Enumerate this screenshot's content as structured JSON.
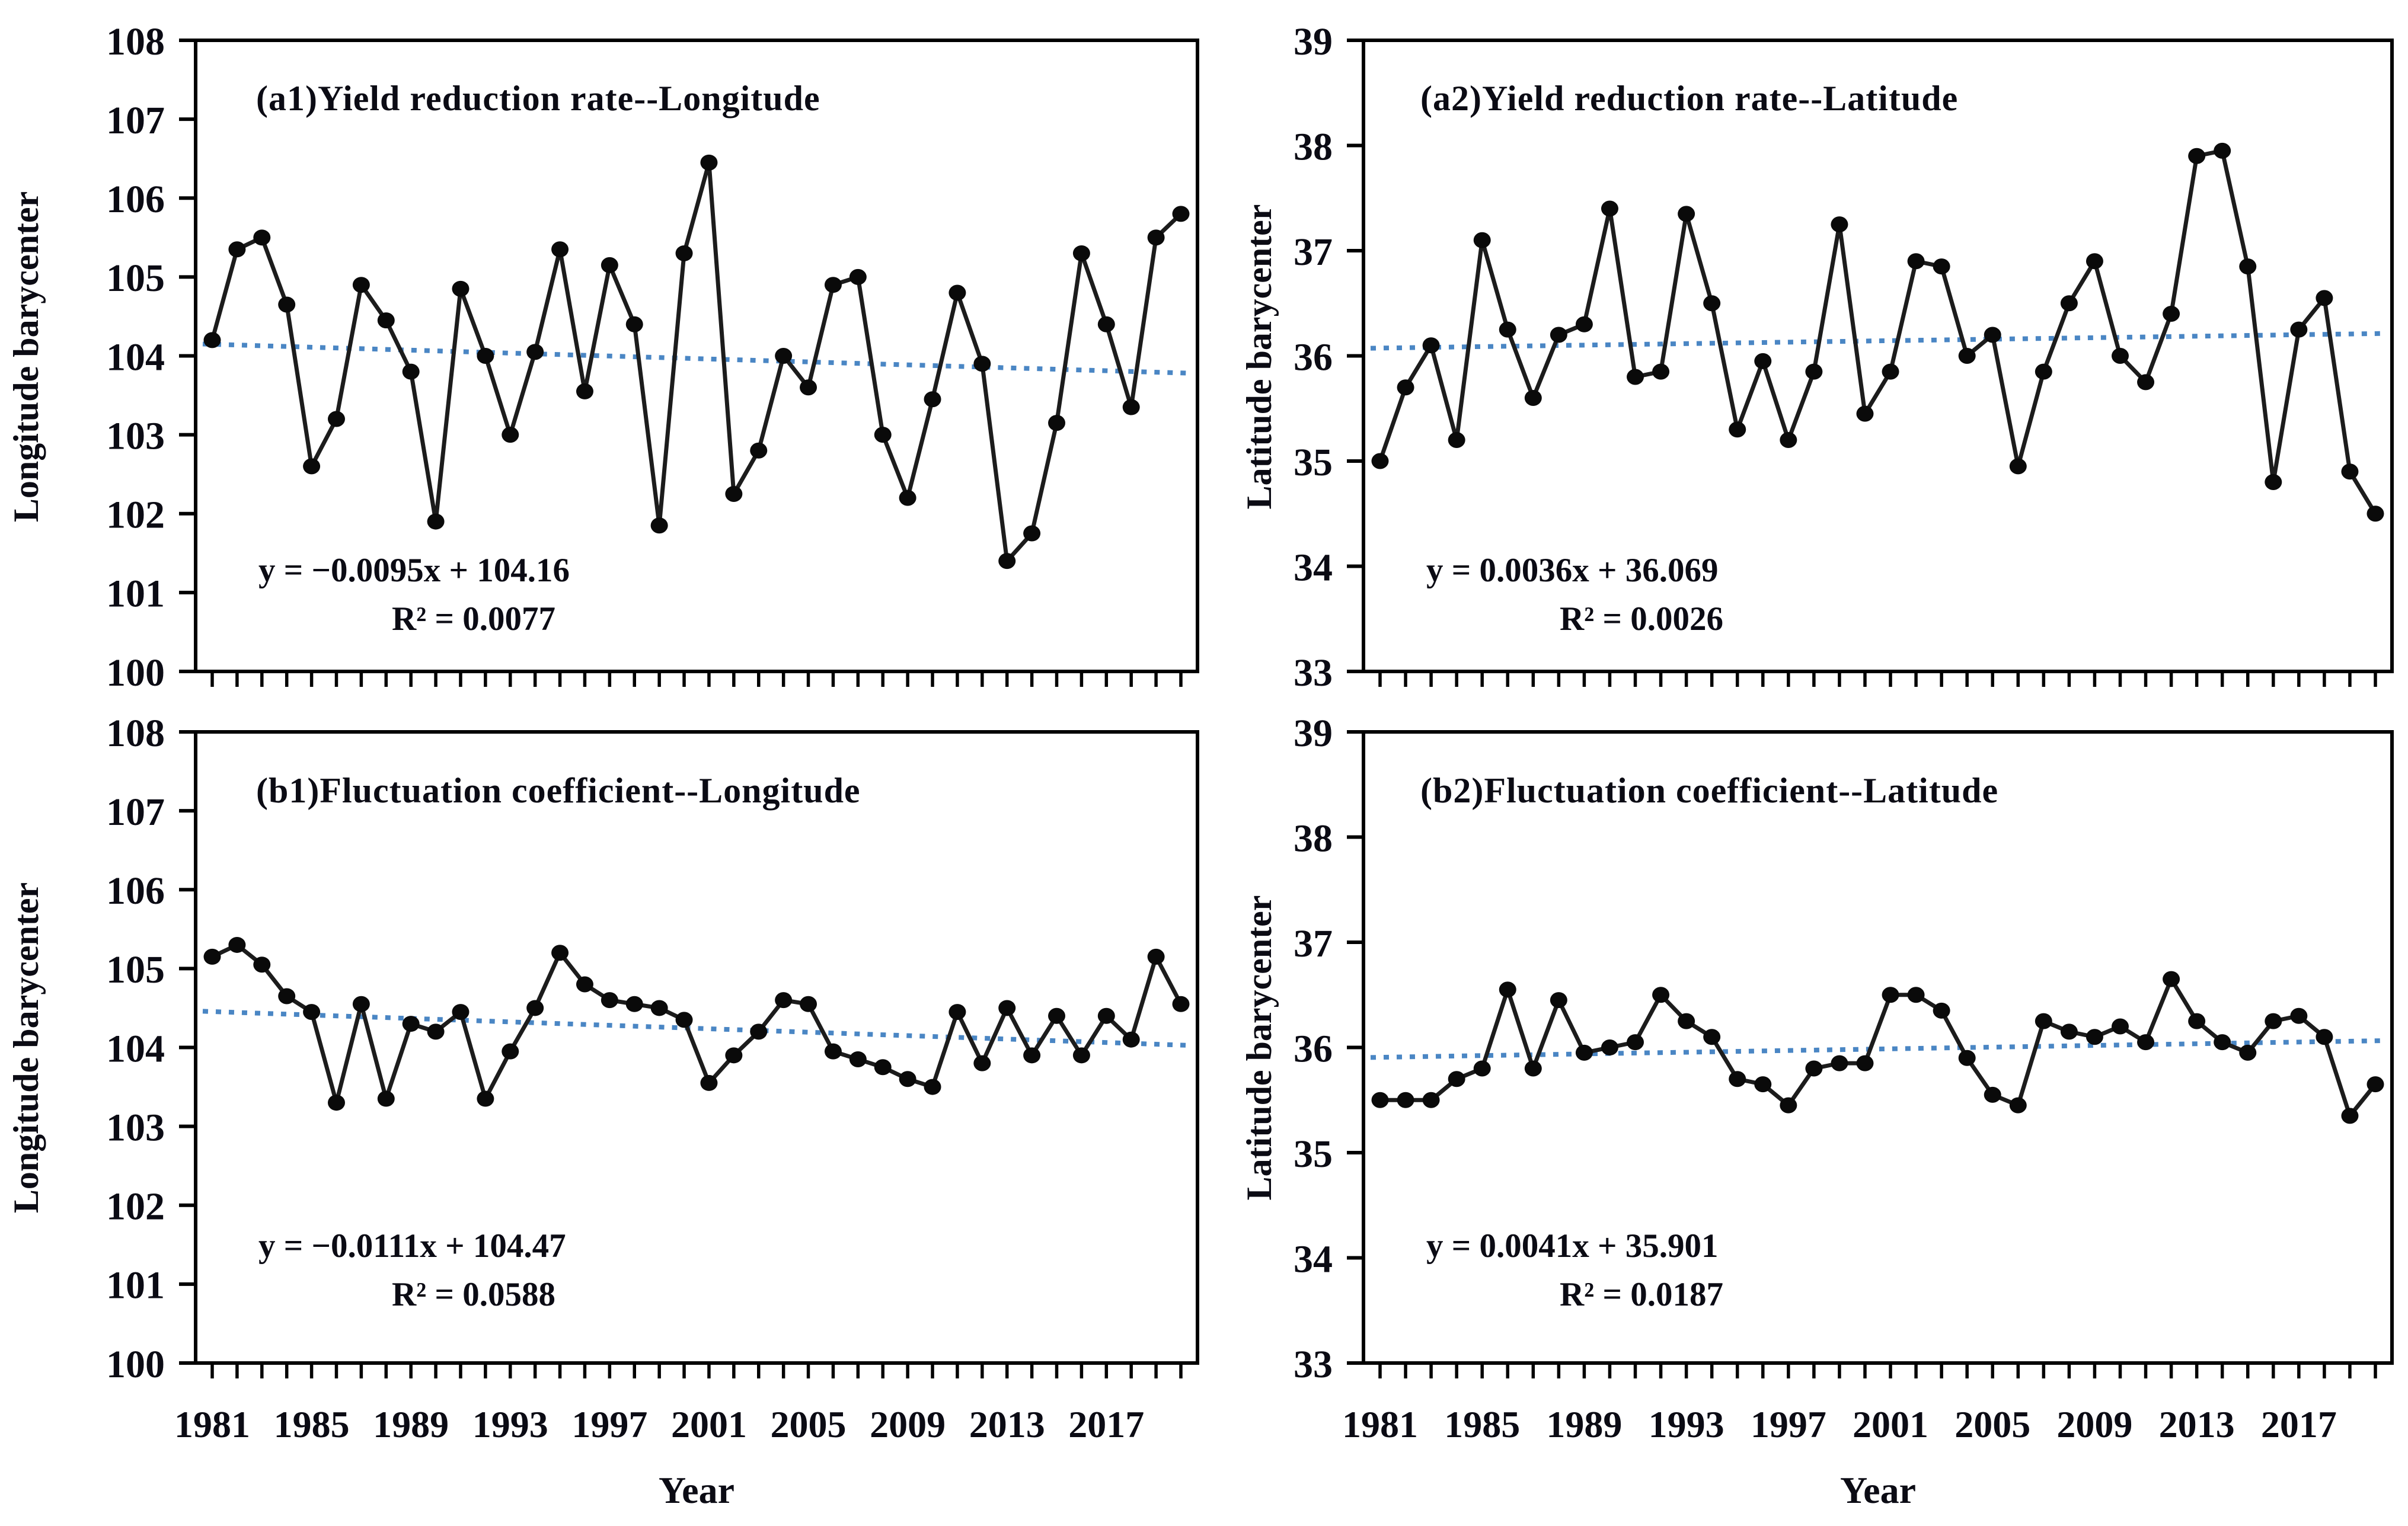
{
  "figure": {
    "x_axis_title": "Year",
    "background": "#ffffff"
  },
  "colors": {
    "series": "#1c1c1c",
    "marker": "#0a0a0a",
    "trendline": "#4a86c4",
    "axis": "#000000",
    "text": "#0b0b14"
  },
  "chart_data": [
    {
      "type": "line",
      "panel": "a1",
      "title": "(a1)Yield reduction rate--Longitude",
      "ylabel": "Longitude barycenter",
      "xlabel": "Year",
      "equation": "y = −0.0095x + 104.16",
      "r2_label": "R² = 0.0077",
      "ylim": [
        100,
        108
      ],
      "y_ticks": [
        108,
        107,
        106,
        105,
        104,
        103,
        102,
        101,
        100
      ],
      "x": [
        1981,
        1982,
        1983,
        1984,
        1985,
        1986,
        1987,
        1988,
        1989,
        1990,
        1991,
        1992,
        1993,
        1994,
        1995,
        1996,
        1997,
        1998,
        1999,
        2000,
        2001,
        2002,
        2003,
        2004,
        2005,
        2006,
        2007,
        2008,
        2009,
        2010,
        2011,
        2012,
        2013,
        2014,
        2015,
        2016,
        2017,
        2018,
        2019,
        2020
      ],
      "x_tick_labels": [
        "1981",
        "1985",
        "1989",
        "1993",
        "1997",
        "2001",
        "2005",
        "2009",
        "2013",
        "2017"
      ],
      "x_label_step": 4,
      "values": [
        104.2,
        105.35,
        105.5,
        104.65,
        102.6,
        103.2,
        104.9,
        104.45,
        103.8,
        101.9,
        104.85,
        104.0,
        103.0,
        104.05,
        105.35,
        103.55,
        105.15,
        104.4,
        101.85,
        105.3,
        106.45,
        102.25,
        102.8,
        104.0,
        103.6,
        104.9,
        105.0,
        103.0,
        102.2,
        103.45,
        104.8,
        103.9,
        101.4,
        101.75,
        103.15,
        105.3,
        104.4,
        103.35,
        105.5,
        105.8
      ],
      "trendline": {
        "slope": -0.0095,
        "intercept": 104.16,
        "style": "dotted"
      }
    },
    {
      "type": "line",
      "panel": "a2",
      "title": "(a2)Yield reduction rate--Latitude",
      "ylabel": "Latitude barycenter",
      "xlabel": "Year",
      "equation": "y = 0.0036x + 36.069",
      "r2_label": "R² = 0.0026",
      "ylim": [
        33,
        39
      ],
      "y_ticks": [
        39,
        38,
        37,
        36,
        35,
        34,
        33
      ],
      "x": [
        1981,
        1982,
        1983,
        1984,
        1985,
        1986,
        1987,
        1988,
        1989,
        1990,
        1991,
        1992,
        1993,
        1994,
        1995,
        1996,
        1997,
        1998,
        1999,
        2000,
        2001,
        2002,
        2003,
        2004,
        2005,
        2006,
        2007,
        2008,
        2009,
        2010,
        2011,
        2012,
        2013,
        2014,
        2015,
        2016,
        2017,
        2018,
        2019,
        2020
      ],
      "x_tick_labels": [
        "1981",
        "1985",
        "1989",
        "1993",
        "1997",
        "2001",
        "2005",
        "2009",
        "2013",
        "2017"
      ],
      "x_label_step": 4,
      "values": [
        35.0,
        35.7,
        36.1,
        35.2,
        37.1,
        36.25,
        35.6,
        36.2,
        36.3,
        37.4,
        35.8,
        35.85,
        37.35,
        36.5,
        35.3,
        35.95,
        35.2,
        35.85,
        37.25,
        35.45,
        35.85,
        36.9,
        36.85,
        36.0,
        36.2,
        34.95,
        35.85,
        36.5,
        36.9,
        36.0,
        35.75,
        36.4,
        37.9,
        37.95,
        36.85,
        34.8,
        36.25,
        36.55,
        34.9,
        34.5
      ],
      "trendline": {
        "slope": 0.0036,
        "intercept": 36.069,
        "style": "dotted"
      }
    },
    {
      "type": "line",
      "panel": "b1",
      "title": "(b1)Fluctuation coefficient--Longitude",
      "ylabel": "Longitude barycenter",
      "xlabel": "Year",
      "equation": "y = −0.0111x + 104.47",
      "r2_label": "R² = 0.0588",
      "ylim": [
        100,
        108
      ],
      "y_ticks": [
        108,
        107,
        106,
        105,
        104,
        103,
        102,
        101,
        100
      ],
      "x": [
        1981,
        1982,
        1983,
        1984,
        1985,
        1986,
        1987,
        1988,
        1989,
        1990,
        1991,
        1992,
        1993,
        1994,
        1995,
        1996,
        1997,
        1998,
        1999,
        2000,
        2001,
        2002,
        2003,
        2004,
        2005,
        2006,
        2007,
        2008,
        2009,
        2010,
        2011,
        2012,
        2013,
        2014,
        2015,
        2016,
        2017,
        2018,
        2019,
        2020
      ],
      "x_tick_labels": [
        "1981",
        "1985",
        "1989",
        "1993",
        "1997",
        "2001",
        "2005",
        "2009",
        "2013",
        "2017"
      ],
      "x_label_step": 4,
      "values": [
        105.15,
        105.3,
        105.05,
        104.65,
        104.45,
        103.3,
        104.55,
        103.35,
        104.3,
        104.2,
        104.45,
        103.35,
        103.95,
        104.5,
        105.2,
        104.8,
        104.6,
        104.55,
        104.5,
        104.35,
        103.55,
        103.9,
        104.2,
        104.6,
        104.55,
        103.95,
        103.85,
        103.75,
        103.6,
        103.5,
        104.45,
        103.8,
        104.5,
        103.9,
        104.4,
        103.9,
        104.4,
        104.1,
        105.15,
        104.55
      ],
      "trendline": {
        "slope": -0.0111,
        "intercept": 104.47,
        "style": "dotted"
      }
    },
    {
      "type": "line",
      "panel": "b2",
      "title": "(b2)Fluctuation coefficient--Latitude",
      "ylabel": "Latitude barycenter",
      "xlabel": "Year",
      "equation": "y = 0.0041x + 35.901",
      "r2_label": "R² = 0.0187",
      "ylim": [
        33,
        39
      ],
      "y_ticks": [
        39,
        38,
        37,
        36,
        35,
        34,
        33
      ],
      "x": [
        1981,
        1982,
        1983,
        1984,
        1985,
        1986,
        1987,
        1988,
        1989,
        1990,
        1991,
        1992,
        1993,
        1994,
        1995,
        1996,
        1997,
        1998,
        1999,
        2000,
        2001,
        2002,
        2003,
        2004,
        2005,
        2006,
        2007,
        2008,
        2009,
        2010,
        2011,
        2012,
        2013,
        2014,
        2015,
        2016,
        2017,
        2018,
        2019,
        2020
      ],
      "x_tick_labels": [
        "1981",
        "1985",
        "1989",
        "1993",
        "1997",
        "2001",
        "2005",
        "2009",
        "2013",
        "2017"
      ],
      "x_label_step": 4,
      "values": [
        35.5,
        35.5,
        35.5,
        35.7,
        35.8,
        36.55,
        35.8,
        36.45,
        35.95,
        36.0,
        36.05,
        36.5,
        36.25,
        36.1,
        35.7,
        35.65,
        35.45,
        35.8,
        35.85,
        35.85,
        36.5,
        36.5,
        36.35,
        35.9,
        35.55,
        35.45,
        36.25,
        36.15,
        36.1,
        36.2,
        36.05,
        36.65,
        36.25,
        36.05,
        35.95,
        36.25,
        36.3,
        36.1,
        35.35,
        35.65
      ],
      "trendline": {
        "slope": 0.0041,
        "intercept": 35.901,
        "style": "dotted"
      }
    }
  ]
}
